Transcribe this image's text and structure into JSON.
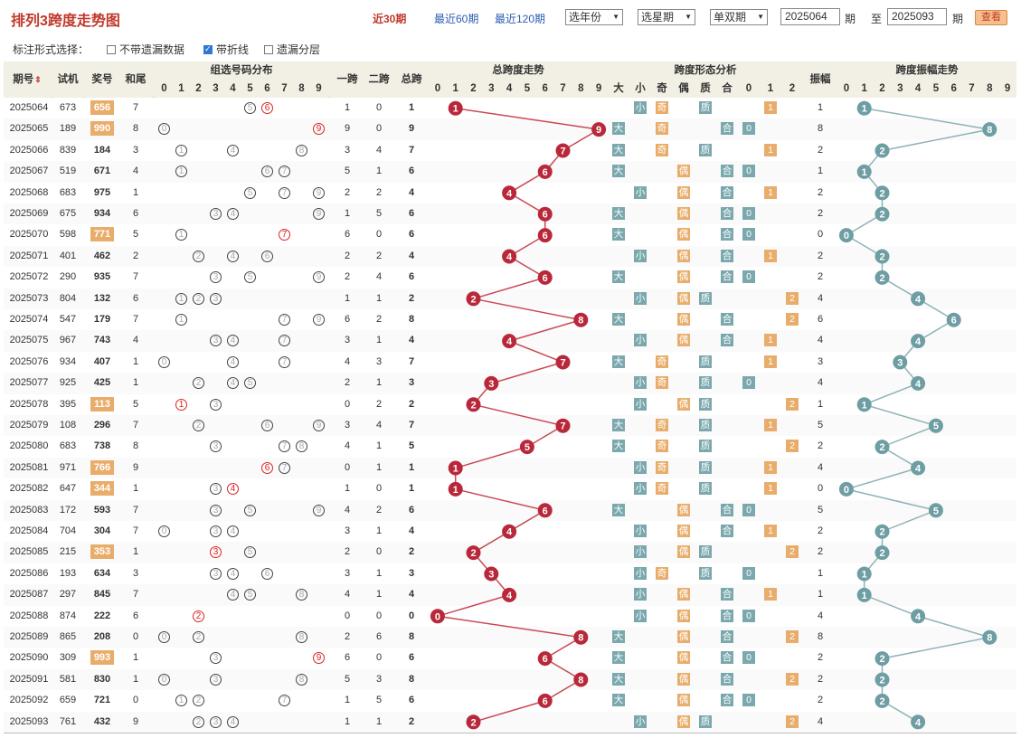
{
  "header": {
    "title": "排列3跨度走势图",
    "periods": [
      "近30期",
      "最近60期",
      "最近120期"
    ],
    "active_period": 0,
    "selects": [
      "选年份",
      "选星期",
      "单双期"
    ],
    "from": "2025064",
    "to": "2025093",
    "qi": "期",
    "zhi": "至",
    "view_button": "查看"
  },
  "options": {
    "title": "标注形式选择：",
    "items": [
      {
        "label": "不带遗漏数据",
        "checked": false
      },
      {
        "label": "带折线",
        "checked": true
      },
      {
        "label": "遗漏分层",
        "checked": false
      }
    ]
  },
  "table_headers": {
    "issue": "期号",
    "sort_icon": "sort-icon",
    "test": "试机",
    "award": "奖号",
    "tail": "和尾",
    "group_dist": "组选号码分布",
    "span1": "一跨",
    "span2": "二跨",
    "span_total": "总跨",
    "trend": "总跨度走势",
    "form": "跨度形态分析",
    "form_cols": [
      "大",
      "小",
      "奇",
      "偶",
      "质",
      "合",
      "0",
      "1",
      "2"
    ],
    "amp": "振幅",
    "amp_trend": "跨度振幅走势",
    "digits": [
      "0",
      "1",
      "2",
      "3",
      "4",
      "5",
      "6",
      "7",
      "8",
      "9"
    ]
  },
  "colors": {
    "red_ball": "#b8283a",
    "red_line": "#c84a54",
    "blue_ball": "#6e9ea3",
    "blue_line": "#8fb3b6",
    "award_highlight": "#e9ad6b"
  },
  "rows": [
    {
      "issue": "2025064",
      "test": "673",
      "award": "656",
      "tail": "7",
      "s1": "1",
      "s2": "0",
      "span": 1,
      "amp": "1",
      "ampv": 1,
      "hl": true
    },
    {
      "issue": "2025065",
      "test": "189",
      "award": "990",
      "tail": "8",
      "s1": "9",
      "s2": "0",
      "span": 9,
      "amp": "8",
      "ampv": 8,
      "hl": true
    },
    {
      "issue": "2025066",
      "test": "839",
      "award": "184",
      "tail": "3",
      "s1": "3",
      "s2": "4",
      "span": 7,
      "amp": "2",
      "ampv": 2,
      "hl": false
    },
    {
      "issue": "2025067",
      "test": "519",
      "award": "671",
      "tail": "4",
      "s1": "5",
      "s2": "1",
      "span": 6,
      "amp": "1",
      "ampv": 1,
      "hl": false
    },
    {
      "issue": "2025068",
      "test": "683",
      "award": "975",
      "tail": "1",
      "s1": "2",
      "s2": "2",
      "span": 4,
      "amp": "2",
      "ampv": 2,
      "hl": false
    },
    {
      "issue": "2025069",
      "test": "675",
      "award": "934",
      "tail": "6",
      "s1": "1",
      "s2": "5",
      "span": 6,
      "amp": "2",
      "ampv": 2,
      "hl": false
    },
    {
      "issue": "2025070",
      "test": "598",
      "award": "771",
      "tail": "5",
      "s1": "6",
      "s2": "0",
      "span": 6,
      "amp": "0",
      "ampv": 0,
      "hl": true
    },
    {
      "issue": "2025071",
      "test": "401",
      "award": "462",
      "tail": "2",
      "s1": "2",
      "s2": "2",
      "span": 4,
      "amp": "2",
      "ampv": 2,
      "hl": false
    },
    {
      "issue": "2025072",
      "test": "290",
      "award": "935",
      "tail": "7",
      "s1": "2",
      "s2": "4",
      "span": 6,
      "amp": "2",
      "ampv": 2,
      "hl": false
    },
    {
      "issue": "2025073",
      "test": "804",
      "award": "132",
      "tail": "6",
      "s1": "1",
      "s2": "1",
      "span": 2,
      "amp": "4",
      "ampv": 4,
      "hl": false
    },
    {
      "issue": "2025074",
      "test": "547",
      "award": "179",
      "tail": "7",
      "s1": "6",
      "s2": "2",
      "span": 8,
      "amp": "6",
      "ampv": 6,
      "hl": false
    },
    {
      "issue": "2025075",
      "test": "967",
      "award": "743",
      "tail": "4",
      "s1": "3",
      "s2": "1",
      "span": 4,
      "amp": "4",
      "ampv": 4,
      "hl": false
    },
    {
      "issue": "2025076",
      "test": "934",
      "award": "407",
      "tail": "1",
      "s1": "4",
      "s2": "3",
      "span": 7,
      "amp": "3",
      "ampv": 3,
      "hl": false
    },
    {
      "issue": "2025077",
      "test": "925",
      "award": "425",
      "tail": "1",
      "s1": "2",
      "s2": "1",
      "span": 3,
      "amp": "4",
      "ampv": 4,
      "hl": false
    },
    {
      "issue": "2025078",
      "test": "395",
      "award": "113",
      "tail": "5",
      "s1": "0",
      "s2": "2",
      "span": 2,
      "amp": "1",
      "ampv": 1,
      "hl": true
    },
    {
      "issue": "2025079",
      "test": "108",
      "award": "296",
      "tail": "7",
      "s1": "3",
      "s2": "4",
      "span": 7,
      "amp": "5",
      "ampv": 5,
      "hl": false
    },
    {
      "issue": "2025080",
      "test": "683",
      "award": "738",
      "tail": "8",
      "s1": "4",
      "s2": "1",
      "span": 5,
      "amp": "2",
      "ampv": 2,
      "hl": false
    },
    {
      "issue": "2025081",
      "test": "971",
      "award": "766",
      "tail": "9",
      "s1": "0",
      "s2": "1",
      "span": 1,
      "amp": "4",
      "ampv": 4,
      "hl": true
    },
    {
      "issue": "2025082",
      "test": "647",
      "award": "344",
      "tail": "1",
      "s1": "1",
      "s2": "0",
      "span": 1,
      "amp": "0",
      "ampv": 0,
      "hl": true
    },
    {
      "issue": "2025083",
      "test": "172",
      "award": "593",
      "tail": "7",
      "s1": "4",
      "s2": "2",
      "span": 6,
      "amp": "5",
      "ampv": 5,
      "hl": false
    },
    {
      "issue": "2025084",
      "test": "704",
      "award": "304",
      "tail": "7",
      "s1": "3",
      "s2": "1",
      "span": 4,
      "amp": "2",
      "ampv": 2,
      "hl": false
    },
    {
      "issue": "2025085",
      "test": "215",
      "award": "353",
      "tail": "1",
      "s1": "2",
      "s2": "0",
      "span": 2,
      "amp": "2",
      "ampv": 2,
      "hl": true
    },
    {
      "issue": "2025086",
      "test": "193",
      "award": "634",
      "tail": "3",
      "s1": "3",
      "s2": "1",
      "span": 3,
      "amp": "1",
      "ampv": 1,
      "hl": false
    },
    {
      "issue": "2025087",
      "test": "297",
      "award": "845",
      "tail": "7",
      "s1": "4",
      "s2": "1",
      "span": 4,
      "amp": "1",
      "ampv": 1,
      "hl": false
    },
    {
      "issue": "2025088",
      "test": "874",
      "award": "222",
      "tail": "6",
      "s1": "0",
      "s2": "0",
      "span": 0,
      "amp": "4",
      "ampv": 4,
      "hl": false
    },
    {
      "issue": "2025089",
      "test": "865",
      "award": "208",
      "tail": "0",
      "s1": "2",
      "s2": "6",
      "span": 8,
      "amp": "8",
      "ampv": 8,
      "hl": false
    },
    {
      "issue": "2025090",
      "test": "309",
      "award": "993",
      "tail": "1",
      "s1": "6",
      "s2": "0",
      "span": 6,
      "amp": "2",
      "ampv": 2,
      "hl": true
    },
    {
      "issue": "2025091",
      "test": "581",
      "award": "830",
      "tail": "1",
      "s1": "5",
      "s2": "3",
      "span": 8,
      "amp": "2",
      "ampv": 2,
      "hl": false
    },
    {
      "issue": "2025092",
      "test": "659",
      "award": "721",
      "tail": "0",
      "s1": "1",
      "s2": "5",
      "span": 6,
      "amp": "2",
      "ampv": 2,
      "hl": false
    },
    {
      "issue": "2025093",
      "test": "761",
      "award": "432",
      "tail": "9",
      "s1": "1",
      "s2": "1",
      "span": 2,
      "amp": "4",
      "ampv": 4,
      "hl": false
    }
  ]
}
